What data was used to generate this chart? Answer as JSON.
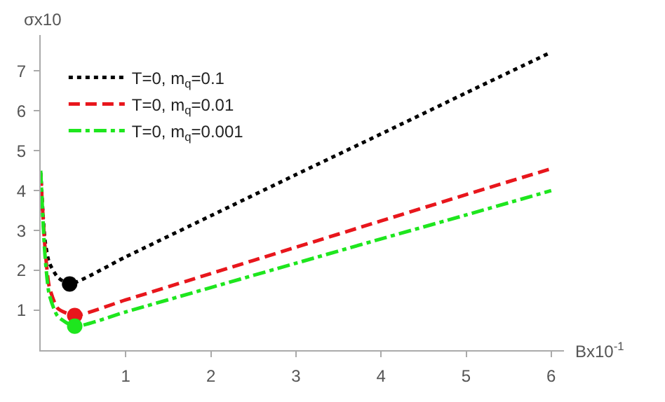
{
  "chart_data": {
    "type": "line",
    "xlabel": "Bx10$^{-1}$",
    "ylabel": "σx10",
    "xlim": [
      0,
      6.15
    ],
    "ylim": [
      0,
      7.9
    ],
    "xticks": [
      1,
      2,
      3,
      4,
      5,
      6
    ],
    "yticks": [
      1,
      2,
      3,
      4,
      5,
      6,
      7
    ],
    "legend": "top left",
    "marker": "none",
    "series": [
      {
        "name": "T=0, m$_{q}$=0.1",
        "color": "#000000",
        "line_style": "dotted",
        "x": [
          0,
          0.05,
          0.1,
          0.2,
          0.34,
          1,
          2,
          3,
          4,
          5,
          6
        ],
        "values": [
          4.45,
          2.76,
          2.2,
          1.83,
          1.66,
          2.34,
          3.37,
          4.4,
          5.42,
          6.45,
          7.47
        ]
      },
      {
        "name": "T=0, m$_{q}$=0.01",
        "color": "#e8161c",
        "line_style": "dashed",
        "x": [
          0,
          0.05,
          0.1,
          0.2,
          0.4,
          1,
          2,
          3,
          4,
          5,
          6
        ],
        "values": [
          4.4,
          2.6,
          1.6,
          1.05,
          0.87,
          1.26,
          1.92,
          2.58,
          3.24,
          3.9,
          4.55
        ]
      },
      {
        "name": "T=0, m$_{q}$=0.001",
        "color": "#1ee61e",
        "line_style": "dashdot",
        "x": [
          0,
          0.05,
          0.1,
          0.2,
          0.4,
          1,
          2,
          3,
          4,
          5,
          6
        ],
        "values": [
          4.5,
          2.4,
          1.4,
          0.85,
          0.6,
          0.96,
          1.57,
          2.18,
          2.79,
          3.39,
          4.0
        ]
      },
      {
        "type": "scatter",
        "marker": "circle",
        "color": "#000000",
        "x": [
          0.34
        ],
        "values": [
          1.66
        ]
      },
      {
        "type": "scatter",
        "marker": "circle",
        "color": "#e8161c",
        "x": [
          0.4
        ],
        "values": [
          0.87
        ]
      },
      {
        "type": "scatter",
        "marker": "circle",
        "color": "#1ee61e",
        "x": [
          0.4
        ],
        "values": [
          0.6
        ]
      }
    ]
  }
}
